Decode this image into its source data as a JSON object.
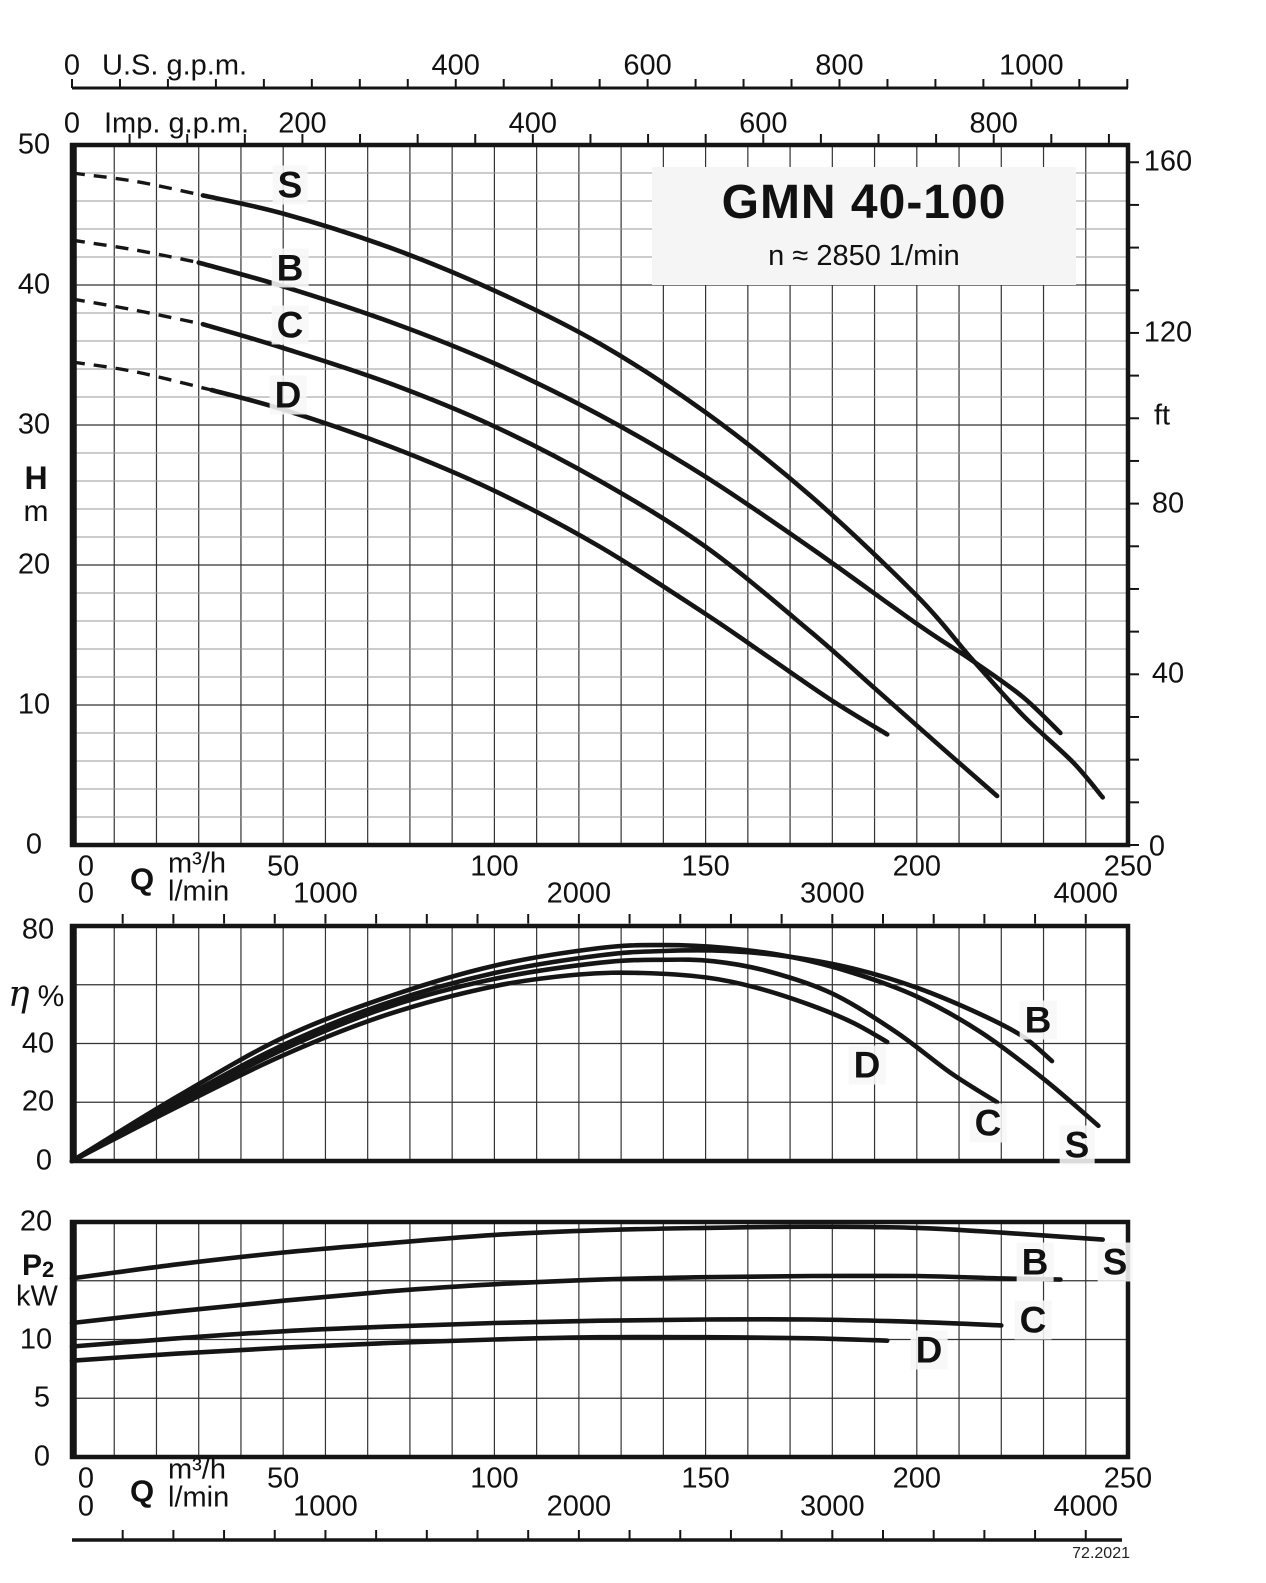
{
  "page": {
    "code": "72.2021",
    "ink": "#151515",
    "grid_minor": "#999999",
    "grid_major": "#333333",
    "label_bg": "#f5f5f5"
  },
  "title": {
    "model": "GMN 40-100",
    "speed": "n ≈ 2850 1/min"
  },
  "axes": {
    "us_gpm": {
      "label": "U.S. g.p.m.",
      "unit_to_m3h": 0.22712,
      "tick_step": 50,
      "labels": [
        0,
        400,
        600,
        800,
        1000
      ]
    },
    "imp_gpm": {
      "label": "Imp. g.p.m.",
      "unit_to_m3h": 0.27276,
      "tick_step": 50,
      "labels": [
        0,
        200,
        400,
        600,
        800
      ]
    },
    "head_m": {
      "symbol": "H",
      "unit": "m",
      "labels": [
        50,
        40,
        30,
        20,
        10,
        0
      ]
    },
    "head_ft": {
      "unit": "ft",
      "m_per_ft": 0.3048,
      "tick_step": 10,
      "labels": [
        160,
        120,
        80,
        40,
        0
      ]
    },
    "flow_m3h": {
      "symbol": "Q",
      "unit": "m³/h",
      "labels": [
        0,
        50,
        100,
        150,
        200,
        250
      ]
    },
    "flow_lmin": {
      "unit": "l/min",
      "unit_to_m3h": 0.06,
      "tick_step": 200,
      "labels": [
        0,
        1000,
        2000,
        3000,
        4000
      ]
    },
    "eta": {
      "symbol": "η",
      "unit": "%",
      "labels": [
        80,
        40,
        20,
        0
      ]
    },
    "p2": {
      "symbol": "P",
      "sub": "2",
      "unit": "kW",
      "labels": [
        20,
        10,
        5,
        0
      ]
    }
  },
  "chart_data": [
    {
      "id": "head",
      "type": "line",
      "title": "Head vs flow",
      "xlabel": "Q (m³/h)",
      "ylabel": "H (m)",
      "xlim": [
        0,
        250
      ],
      "ylim": [
        0,
        50
      ],
      "grid": {
        "x_step": 10,
        "y_step": 2,
        "y_major": 10
      },
      "series": [
        {
          "name": "S",
          "dash_until": 31,
          "points": [
            [
              0,
              48
            ],
            [
              15,
              47.4
            ],
            [
              31,
              46.4
            ],
            [
              50,
              45.1
            ],
            [
              75,
              42.7
            ],
            [
              100,
              39.6
            ],
            [
              125,
              35.8
            ],
            [
              150,
              30.9
            ],
            [
              175,
              24.9
            ],
            [
              200,
              17.8
            ],
            [
              213,
              13.3
            ],
            [
              225,
              9.3
            ],
            [
              237,
              5.9
            ],
            [
              244,
              3.4
            ]
          ]
        },
        {
          "name": "B",
          "dash_until": 30,
          "points": [
            [
              0,
              43.2
            ],
            [
              15,
              42.5
            ],
            [
              30,
              41.6
            ],
            [
              50,
              39.9
            ],
            [
              75,
              37.4
            ],
            [
              100,
              34.4
            ],
            [
              125,
              30.7
            ],
            [
              150,
              26.3
            ],
            [
              175,
              21.2
            ],
            [
              200,
              15.8
            ],
            [
              213,
              13.2
            ],
            [
              225,
              10.6
            ],
            [
              234,
              8
            ]
          ]
        },
        {
          "name": "C",
          "dash_until": 31,
          "points": [
            [
              0,
              39
            ],
            [
              15,
              38.2
            ],
            [
              31,
              37.2
            ],
            [
              50,
              35.5
            ],
            [
              75,
              33
            ],
            [
              100,
              29.9
            ],
            [
              125,
              26
            ],
            [
              150,
              21.3
            ],
            [
              175,
              15.2
            ],
            [
              190,
              11.2
            ],
            [
              205,
              7.2
            ],
            [
              219,
              3.5
            ]
          ]
        },
        {
          "name": "D",
          "dash_until": 33,
          "points": [
            [
              0,
              34.5
            ],
            [
              15,
              33.8
            ],
            [
              33,
              32.5
            ],
            [
              50,
              31.1
            ],
            [
              75,
              28.5
            ],
            [
              100,
              25.3
            ],
            [
              125,
              21.3
            ],
            [
              150,
              16.5
            ],
            [
              165,
              13.4
            ],
            [
              180,
              10.3
            ],
            [
              193,
              7.9
            ]
          ]
        }
      ]
    },
    {
      "id": "efficiency",
      "type": "line",
      "title": "Efficiency vs flow",
      "xlabel": "Q (m³/h)",
      "ylabel": "η (%)",
      "xlim": [
        0,
        250
      ],
      "ylim": [
        0,
        80
      ],
      "grid": {
        "x_step": 10,
        "y_step": 20
      },
      "series": [
        {
          "name": "S",
          "points": [
            [
              0,
              0
            ],
            [
              25,
              22
            ],
            [
              50,
              42
            ],
            [
              75,
              56
            ],
            [
              100,
              66.5
            ],
            [
              125,
              72.5
            ],
            [
              140,
              73.5
            ],
            [
              155,
              72.5
            ],
            [
              170,
              69.5
            ],
            [
              185,
              64
            ],
            [
              200,
              56
            ],
            [
              215,
              44
            ],
            [
              230,
              28
            ],
            [
              243,
              12
            ]
          ]
        },
        {
          "name": "B",
          "points": [
            [
              0,
              0
            ],
            [
              25,
              20.5
            ],
            [
              50,
              39.5
            ],
            [
              75,
              54
            ],
            [
              100,
              64
            ],
            [
              125,
              70
            ],
            [
              140,
              71.5
            ],
            [
              155,
              71.5
            ],
            [
              170,
              69.5
            ],
            [
              185,
              65.5
            ],
            [
              200,
              59
            ],
            [
              215,
              50
            ],
            [
              225,
              42.5
            ],
            [
              232,
              34
            ]
          ]
        },
        {
          "name": "C",
          "points": [
            [
              0,
              0
            ],
            [
              25,
              19.5
            ],
            [
              50,
              38
            ],
            [
              75,
              52.5
            ],
            [
              100,
              62
            ],
            [
              125,
              67.5
            ],
            [
              140,
              68.5
            ],
            [
              152,
              68
            ],
            [
              165,
              64.5
            ],
            [
              180,
              57
            ],
            [
              195,
              44
            ],
            [
              208,
              30
            ],
            [
              219,
              20
            ]
          ]
        },
        {
          "name": "D",
          "points": [
            [
              0,
              0
            ],
            [
              25,
              18.5
            ],
            [
              50,
              36
            ],
            [
              75,
              50
            ],
            [
              100,
              59.5
            ],
            [
              120,
              63.5
            ],
            [
              135,
              64
            ],
            [
              150,
              62.5
            ],
            [
              162,
              59
            ],
            [
              175,
              53
            ],
            [
              185,
              47
            ],
            [
              193,
              40.5
            ]
          ]
        }
      ]
    },
    {
      "id": "power",
      "type": "line",
      "title": "Shaft power vs flow",
      "xlabel": "Q (m³/h)",
      "ylabel": "P2 (kW)",
      "xlim": [
        0,
        250
      ],
      "ylim": [
        0,
        20
      ],
      "grid": {
        "x_step": 10,
        "y_step": 5
      },
      "series": [
        {
          "name": "S",
          "points": [
            [
              0,
              15.2
            ],
            [
              25,
              16.4
            ],
            [
              50,
              17.4
            ],
            [
              75,
              18.2
            ],
            [
              100,
              18.9
            ],
            [
              125,
              19.3
            ],
            [
              150,
              19.5
            ],
            [
              175,
              19.6
            ],
            [
              200,
              19.5
            ],
            [
              220,
              19.1
            ],
            [
              244,
              18.5
            ]
          ]
        },
        {
          "name": "B",
          "points": [
            [
              0,
              11.4
            ],
            [
              25,
              12.4
            ],
            [
              50,
              13.3
            ],
            [
              75,
              14.1
            ],
            [
              100,
              14.7
            ],
            [
              125,
              15.1
            ],
            [
              150,
              15.3
            ],
            [
              175,
              15.4
            ],
            [
              200,
              15.4
            ],
            [
              220,
              15.2
            ],
            [
              234,
              15.1
            ]
          ]
        },
        {
          "name": "C",
          "points": [
            [
              0,
              9.4
            ],
            [
              25,
              10.1
            ],
            [
              50,
              10.7
            ],
            [
              75,
              11.1
            ],
            [
              100,
              11.4
            ],
            [
              125,
              11.6
            ],
            [
              150,
              11.7
            ],
            [
              175,
              11.7
            ],
            [
              200,
              11.5
            ],
            [
              220,
              11.2
            ]
          ]
        },
        {
          "name": "D",
          "points": [
            [
              0,
              8.2
            ],
            [
              25,
              8.8
            ],
            [
              50,
              9.3
            ],
            [
              75,
              9.7
            ],
            [
              100,
              10
            ],
            [
              125,
              10.2
            ],
            [
              150,
              10.2
            ],
            [
              175,
              10.1
            ],
            [
              193,
              9.9
            ]
          ]
        }
      ]
    }
  ]
}
